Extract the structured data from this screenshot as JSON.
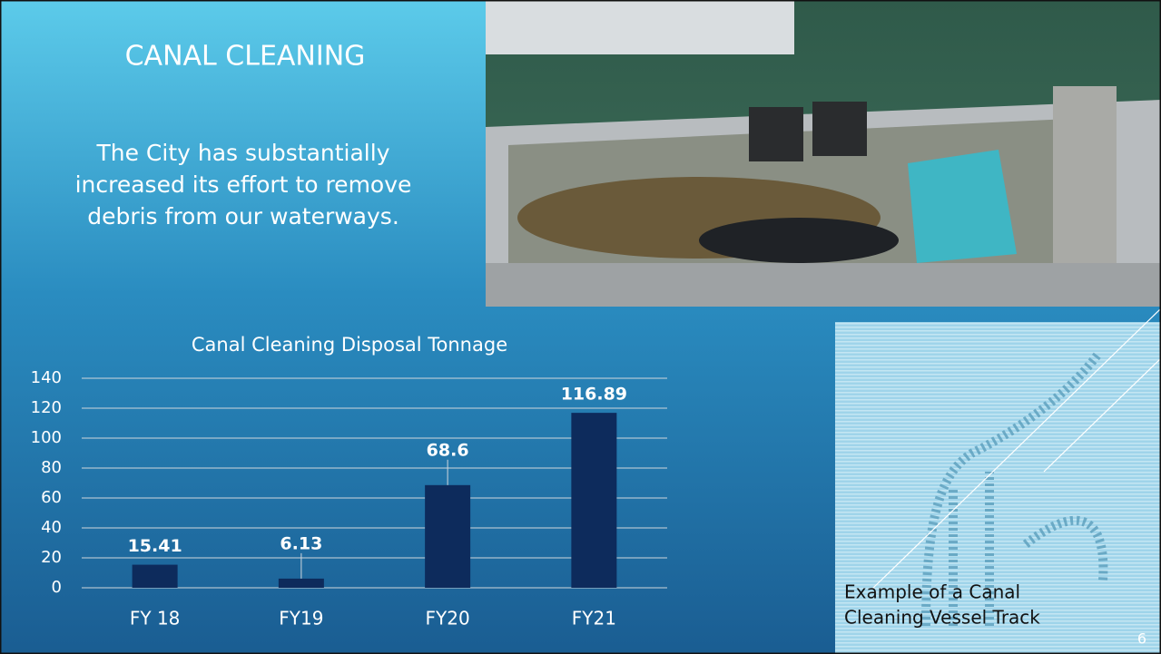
{
  "slide": {
    "title": "CANAL CLEANING",
    "body": [
      "The City has substantially",
      "increased its effort to remove",
      "debris from our waterways."
    ],
    "caption": [
      "Example of a Canal",
      "Cleaning Vessel Track"
    ],
    "page_number": "6"
  },
  "chart_data": {
    "type": "bar",
    "title": "Canal Cleaning Disposal Tonnage",
    "categories": [
      "FY 18",
      "FY19",
      "FY20",
      "FY21"
    ],
    "values": [
      15.41,
      6.13,
      68.6,
      116.89
    ],
    "color": "#0d2b5c",
    "ylim": [
      0,
      140
    ],
    "yticks": [
      0,
      20,
      40,
      60,
      80,
      100,
      120,
      140
    ],
    "grid": true
  }
}
